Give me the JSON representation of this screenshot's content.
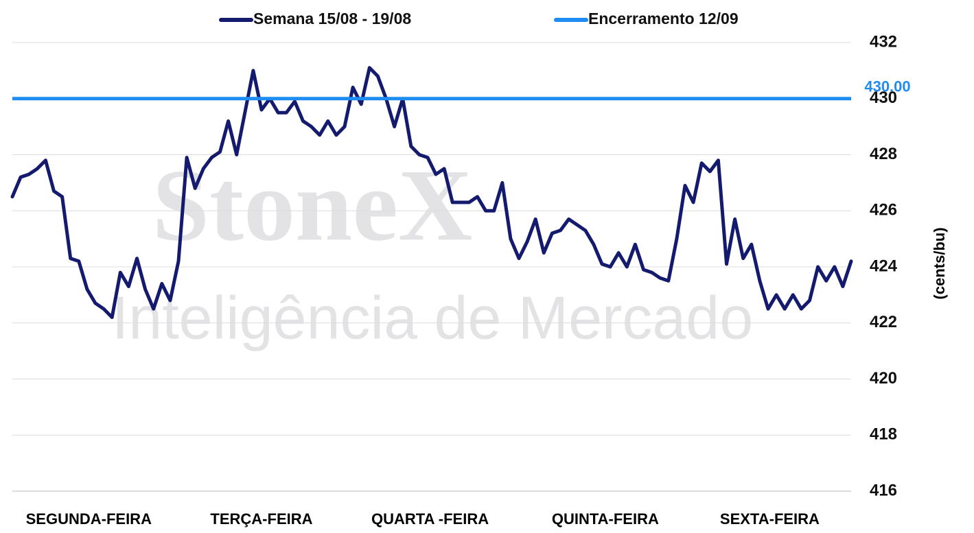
{
  "chart_data": {
    "type": "line",
    "watermark": {
      "brand": "StoneX",
      "tagline": "Inteligência de Mercado"
    },
    "y_label": "(cents/bu)",
    "legend": "top",
    "grid": true,
    "xlim": [
      0,
      101
    ],
    "xticks": [
      {
        "value": 9.2,
        "label": "SEGUNDA-FEIRA"
      },
      {
        "value": 30,
        "label": "TERÇA-FEIRA"
      },
      {
        "value": 50.3,
        "label": "QUARTA -FEIRA"
      },
      {
        "value": 71.4,
        "label": "QUINTA-FEIRA"
      },
      {
        "value": 91.2,
        "label": "SEXTA-FEIRA"
      }
    ],
    "ylim": [
      416,
      432
    ],
    "yticks": [
      416,
      418,
      420,
      422,
      424,
      426,
      428,
      430,
      432
    ],
    "series": [
      {
        "name": "Semana 15/08 - 19/08",
        "color": "#141b6e",
        "values": [
          426.5,
          427.2,
          427.3,
          427.5,
          427.8,
          426.7,
          426.5,
          424.3,
          424.2,
          423.2,
          422.7,
          422.5,
          422.2,
          423.8,
          423.3,
          424.3,
          423.2,
          422.5,
          423.4,
          422.8,
          424.2,
          427.9,
          426.8,
          427.5,
          427.9,
          428.1,
          429.2,
          428.0,
          429.5,
          431.0,
          429.6,
          430.0,
          429.5,
          429.5,
          429.9,
          429.2,
          429.0,
          428.7,
          429.2,
          428.7,
          429.0,
          430.4,
          429.8,
          431.1,
          430.8,
          430.0,
          429.0,
          430.0,
          428.3,
          428.0,
          427.9,
          427.3,
          427.5,
          426.3,
          426.3,
          426.3,
          426.5,
          426.0,
          426.0,
          427.0,
          425.0,
          424.3,
          424.9,
          425.7,
          424.5,
          425.2,
          425.3,
          425.7,
          425.5,
          425.3,
          424.8,
          424.1,
          424.0,
          424.5,
          424.0,
          424.8,
          423.9,
          423.8,
          423.6,
          423.5,
          425.0,
          426.9,
          426.3,
          427.7,
          427.4,
          427.8,
          424.1,
          425.7,
          424.3,
          424.8,
          423.5,
          422.5,
          423.0,
          422.5,
          423.0,
          422.5,
          422.8,
          424.0,
          423.5,
          424.0,
          423.3,
          424.2
        ]
      },
      {
        "name": "Encerramento 12/09",
        "color": "#1e8cf0",
        "values": [
          430
        ],
        "value_labels": [
          "430.00"
        ]
      }
    ]
  }
}
